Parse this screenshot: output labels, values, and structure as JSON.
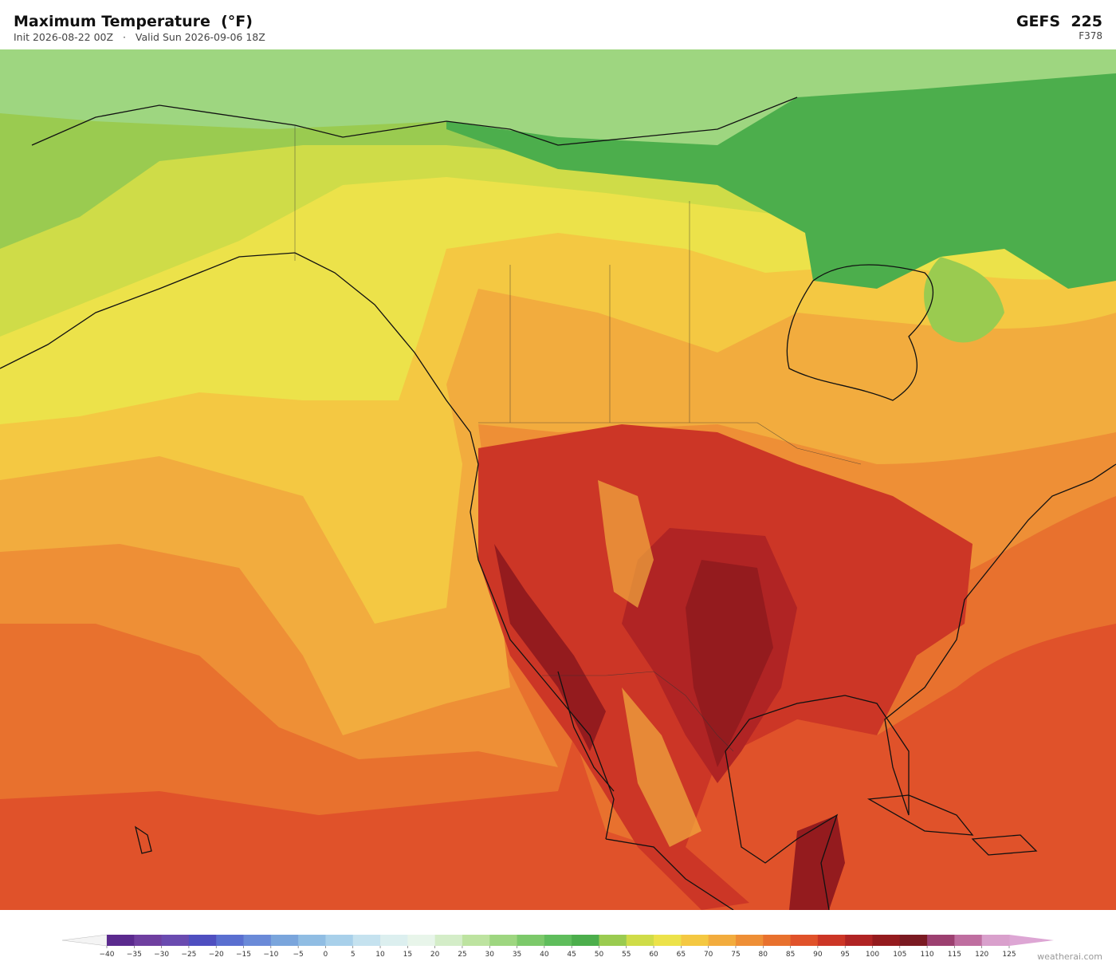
{
  "header": {
    "title": "Maximum Temperature  (°F)",
    "init": "Init 2026-08-22 00Z",
    "separator": "·",
    "valid": "Valid Sun 2026-09-06 18Z",
    "model": "GEFS  225",
    "forecast_hour": "F378"
  },
  "colorbar": {
    "ticks": [
      {
        "value": -40,
        "label": "−40"
      },
      {
        "value": -35,
        "label": "−35"
      },
      {
        "value": -30,
        "label": "−30"
      },
      {
        "value": -25,
        "label": "−25"
      },
      {
        "value": -20,
        "label": "−20"
      },
      {
        "value": -15,
        "label": "−15"
      },
      {
        "value": -10,
        "label": "−10"
      },
      {
        "value": -5,
        "label": "−5"
      },
      0,
      5,
      10,
      15,
      20,
      25,
      30,
      35,
      40,
      45,
      50,
      55,
      60,
      65,
      70,
      75,
      80,
      85,
      90,
      95,
      100,
      105,
      110,
      115,
      120,
      125
    ],
    "colors": [
      "#5b2a8e",
      "#6f3fa0",
      "#6a4bb0",
      "#4f4fc0",
      "#5a6fd0",
      "#6a8ad8",
      "#7aa5dc",
      "#90bde3",
      "#a8d0ea",
      "#c5e2ef",
      "#dcefef",
      "#e8f5ea",
      "#d4edc8",
      "#bde3a0",
      "#9ed680",
      "#7cc96a",
      "#5fbd5c",
      "#4cae4c",
      "#9acb50",
      "#cfdc48",
      "#ece24a",
      "#f4c842",
      "#f2ac3e",
      "#ee8f36",
      "#e8712e",
      "#e0522a",
      "#cc3626",
      "#b02424",
      "#941b1e",
      "#7a1a22",
      "#9c4070",
      "#bf6ea0",
      "#d9a0cc"
    ],
    "under_color": "#f4f4f4",
    "over_color": "#dda6d4"
  },
  "footer": {
    "credit": "weatherai.com"
  }
}
